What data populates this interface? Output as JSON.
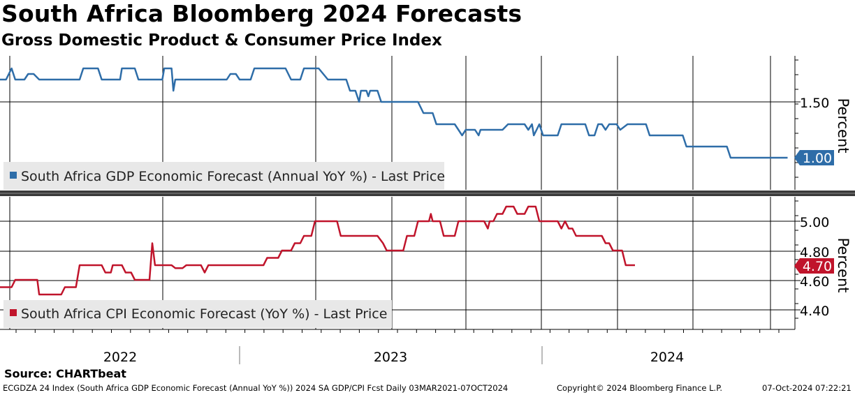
{
  "title": "South Africa Bloomberg 2024 Forecasts",
  "subtitle": "Gross Domestic Product & Consumer Price Index",
  "source": "Source: CHARTbeat",
  "footer": {
    "description": "ECGDZA 24 Index (South Africa GDP Economic Forecast (Annual YoY %)) 2024 SA GDP/CPI Fcst  Daily 03MAR2021-07OCT2024",
    "copyright": "Copyright© 2024 Bloomberg Finance L.P.",
    "timestamp": "07-Oct-2024 07:22:21"
  },
  "colors": {
    "gdp": "#2e6da8",
    "cpi": "#c0142b",
    "grid": "#000000"
  },
  "chart_data": [
    {
      "type": "line",
      "name": "gdp",
      "ylabel": "Percent",
      "ylim": [
        0.65,
        1.85
      ],
      "yticks": [
        "1.50"
      ],
      "last_value": "1.00",
      "legend": "South Africa GDP Economic Forecast (Annual YoY %) - Last Price",
      "points": [
        [
          2021.167,
          1.7
        ],
        [
          2021.2,
          1.7
        ],
        [
          2021.23,
          1.8
        ],
        [
          2021.25,
          1.7
        ],
        [
          2021.3,
          1.7
        ],
        [
          2021.32,
          1.75
        ],
        [
          2021.35,
          1.75
        ],
        [
          2021.38,
          1.7
        ],
        [
          2021.6,
          1.7
        ],
        [
          2021.62,
          1.8
        ],
        [
          2021.7,
          1.8
        ],
        [
          2021.72,
          1.7
        ],
        [
          2021.82,
          1.7
        ],
        [
          2021.83,
          1.8
        ],
        [
          2021.9,
          1.8
        ],
        [
          2021.92,
          1.7
        ],
        [
          2022.05,
          1.7
        ],
        [
          2022.06,
          1.8
        ],
        [
          2022.1,
          1.8
        ],
        [
          2022.11,
          1.6
        ],
        [
          2022.12,
          1.7
        ],
        [
          2022.4,
          1.7
        ],
        [
          2022.42,
          1.75
        ],
        [
          2022.45,
          1.75
        ],
        [
          2022.47,
          1.7
        ],
        [
          2022.53,
          1.7
        ],
        [
          2022.55,
          1.8
        ],
        [
          2022.72,
          1.8
        ],
        [
          2022.75,
          1.7
        ],
        [
          2022.8,
          1.7
        ],
        [
          2022.82,
          1.8
        ],
        [
          2022.9,
          1.8
        ],
        [
          2022.95,
          1.7
        ],
        [
          2023.05,
          1.7
        ],
        [
          2023.07,
          1.6
        ],
        [
          2023.1,
          1.6
        ],
        [
          2023.12,
          1.5
        ],
        [
          2023.13,
          1.6
        ],
        [
          2023.16,
          1.6
        ],
        [
          2023.17,
          1.55
        ],
        [
          2023.18,
          1.6
        ],
        [
          2023.22,
          1.6
        ],
        [
          2023.24,
          1.5
        ],
        [
          2023.44,
          1.5
        ],
        [
          2023.47,
          1.4
        ],
        [
          2023.52,
          1.4
        ],
        [
          2023.54,
          1.3
        ],
        [
          2023.64,
          1.3
        ],
        [
          2023.66,
          1.25
        ],
        [
          2023.68,
          1.2
        ],
        [
          2023.7,
          1.25
        ],
        [
          2023.75,
          1.25
        ],
        [
          2023.77,
          1.2
        ],
        [
          2023.78,
          1.25
        ],
        [
          2023.9,
          1.25
        ],
        [
          2023.93,
          1.3
        ],
        [
          2024.02,
          1.3
        ],
        [
          2024.04,
          1.25
        ],
        [
          2024.06,
          1.3
        ],
        [
          2024.07,
          1.2
        ],
        [
          2024.1,
          1.3
        ],
        [
          2024.12,
          1.2
        ],
        [
          2024.2,
          1.2
        ],
        [
          2024.22,
          1.3
        ],
        [
          2024.35,
          1.3
        ],
        [
          2024.37,
          1.2
        ],
        [
          2024.4,
          1.2
        ],
        [
          2024.42,
          1.3
        ],
        [
          2024.44,
          1.3
        ],
        [
          2024.46,
          1.25
        ],
        [
          2024.48,
          1.3
        ],
        [
          2024.52,
          1.3
        ],
        [
          2024.54,
          1.25
        ],
        [
          2024.58,
          1.3
        ],
        [
          2024.68,
          1.3
        ],
        [
          2024.7,
          1.2
        ],
        [
          2024.88,
          1.2
        ],
        [
          2024.9,
          1.1
        ],
        [
          2025.12,
          1.1
        ],
        [
          2025.14,
          1.0
        ],
        [
          2025.45,
          1.0
        ]
      ]
    },
    {
      "type": "line",
      "name": "cpi",
      "ylabel": "Percent",
      "ylim": [
        4.33,
        5.13
      ],
      "yticks": [
        "5.00",
        "4.80",
        "4.60",
        "4.40"
      ],
      "last_value": "4.70",
      "legend": "South Africa CPI Economic Forecast (YoY %) - Last Price",
      "points": [
        [
          2021.167,
          4.55
        ],
        [
          2021.23,
          4.55
        ],
        [
          2021.25,
          4.6
        ],
        [
          2021.3,
          4.6
        ],
        [
          2021.34,
          4.6
        ],
        [
          2021.37,
          4.6
        ],
        [
          2021.38,
          4.5
        ],
        [
          2021.5,
          4.5
        ],
        [
          2021.52,
          4.55
        ],
        [
          2021.58,
          4.55
        ],
        [
          2021.6,
          4.7
        ],
        [
          2021.72,
          4.7
        ],
        [
          2021.74,
          4.65
        ],
        [
          2021.77,
          4.65
        ],
        [
          2021.78,
          4.7
        ],
        [
          2021.83,
          4.7
        ],
        [
          2021.85,
          4.65
        ],
        [
          2021.88,
          4.65
        ],
        [
          2021.9,
          4.6
        ],
        [
          2021.98,
          4.6
        ],
        [
          2021.995,
          4.85
        ],
        [
          2022.01,
          4.7
        ],
        [
          2022.1,
          4.7
        ],
        [
          2022.12,
          4.68
        ],
        [
          2022.16,
          4.68
        ],
        [
          2022.18,
          4.7
        ],
        [
          2022.26,
          4.7
        ],
        [
          2022.28,
          4.65
        ],
        [
          2022.3,
          4.7
        ],
        [
          2022.6,
          4.7
        ],
        [
          2022.62,
          4.75
        ],
        [
          2022.68,
          4.75
        ],
        [
          2022.7,
          4.8
        ],
        [
          2022.75,
          4.8
        ],
        [
          2022.77,
          4.85
        ],
        [
          2022.8,
          4.85
        ],
        [
          2022.82,
          4.9
        ],
        [
          2022.86,
          4.9
        ],
        [
          2022.88,
          5.0
        ],
        [
          2023.0,
          5.0
        ],
        [
          2023.02,
          4.9
        ],
        [
          2023.22,
          4.9
        ],
        [
          2023.25,
          4.85
        ],
        [
          2023.27,
          4.8
        ],
        [
          2023.36,
          4.8
        ],
        [
          2023.38,
          4.9
        ],
        [
          2023.42,
          4.9
        ],
        [
          2023.44,
          5.0
        ],
        [
          2023.5,
          5.0
        ],
        [
          2023.51,
          5.05
        ],
        [
          2023.52,
          5.0
        ],
        [
          2023.56,
          5.0
        ],
        [
          2023.58,
          4.9
        ],
        [
          2023.64,
          4.9
        ],
        [
          2023.66,
          5.0
        ],
        [
          2023.8,
          5.0
        ],
        [
          2023.82,
          4.95
        ],
        [
          2023.83,
          5.0
        ],
        [
          2023.85,
          5.0
        ],
        [
          2023.87,
          5.05
        ],
        [
          2023.9,
          5.05
        ],
        [
          2023.92,
          5.1
        ],
        [
          2023.96,
          5.1
        ],
        [
          2023.98,
          5.05
        ],
        [
          2024.02,
          5.05
        ],
        [
          2024.04,
          5.1
        ],
        [
          2024.08,
          5.1
        ],
        [
          2024.1,
          5.0
        ],
        [
          2024.2,
          5.0
        ],
        [
          2024.22,
          4.95
        ],
        [
          2024.24,
          5.0
        ],
        [
          2024.26,
          4.95
        ],
        [
          2024.28,
          4.95
        ],
        [
          2024.3,
          4.9
        ],
        [
          2024.44,
          4.9
        ],
        [
          2024.46,
          4.85
        ],
        [
          2024.48,
          4.85
        ],
        [
          2024.5,
          4.8
        ],
        [
          2024.55,
          4.8
        ],
        [
          2024.57,
          4.7
        ],
        [
          2024.62,
          4.7
        ]
      ]
    }
  ],
  "x_axis": {
    "labels": [
      "2022",
      "2023",
      "2024"
    ]
  }
}
